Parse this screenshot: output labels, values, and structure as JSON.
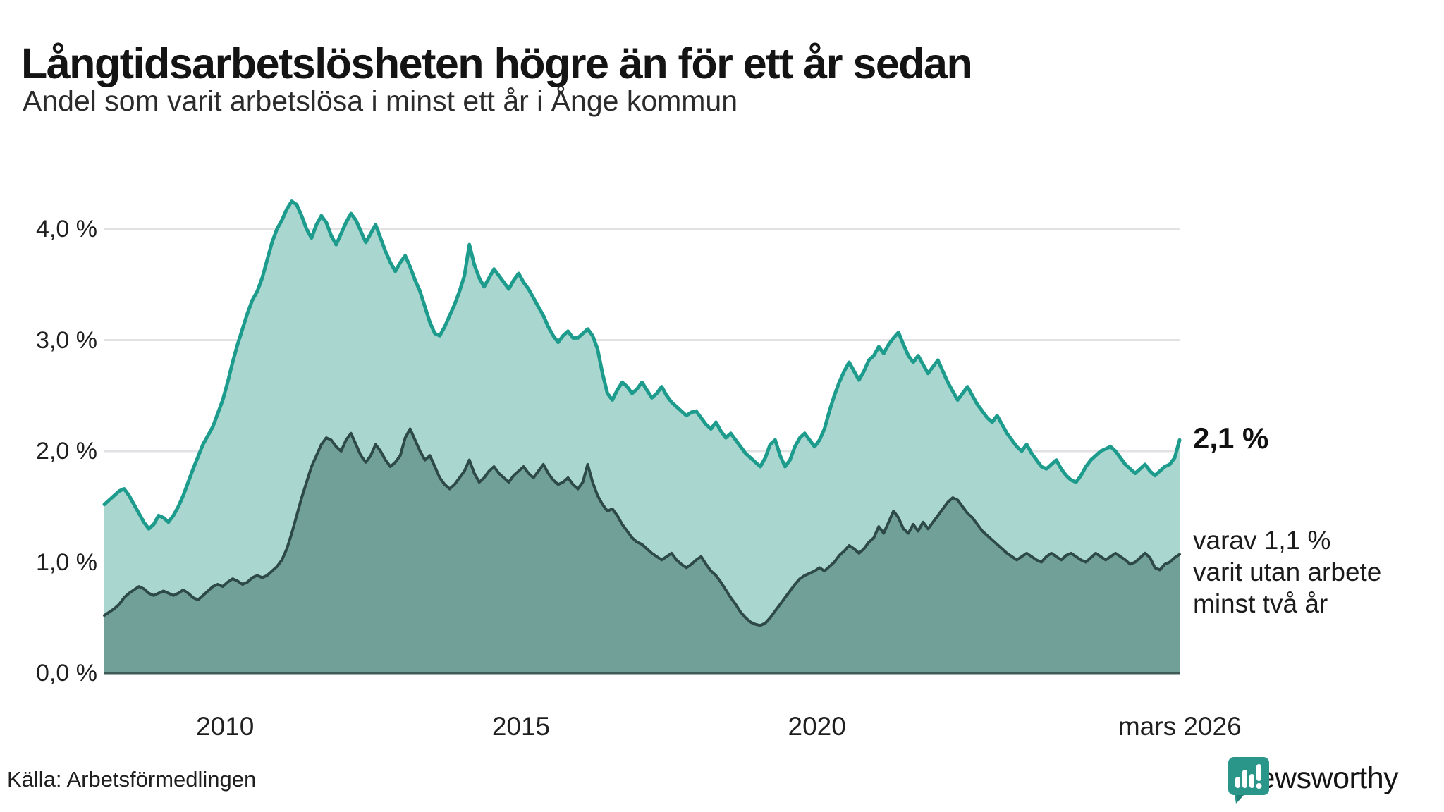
{
  "header": {
    "title": "Långtidsarbetslösheten högre än för ett år sedan",
    "subtitle": "Andel som varit arbetslösa i minst ett år i Ånge kommun"
  },
  "chart_data": {
    "type": "area",
    "unit": "%",
    "xlim": [
      2008.0,
      2026.1667
    ],
    "ylim": [
      0,
      4.3
    ],
    "grid": true,
    "x_frequency": "monthly",
    "yticks": [
      {
        "value": 0,
        "label": "0,0 %"
      },
      {
        "value": 1,
        "label": "1,0 %"
      },
      {
        "value": 2,
        "label": "2,0 %"
      },
      {
        "value": 3,
        "label": "3,0 %"
      },
      {
        "value": 4,
        "label": "4,0 %"
      }
    ],
    "xticks": [
      {
        "value": 2010.04,
        "label": "2010"
      },
      {
        "value": 2015.04,
        "label": "2015"
      },
      {
        "value": 2020.04,
        "label": "2020"
      },
      {
        "value": 2026.17,
        "label": "mars 2026"
      }
    ],
    "series": [
      {
        "name": "Andel arbetslösa minst ett år",
        "line_color": "#1d9c8d",
        "fill_color": "#a9d6cf",
        "line_width": 5,
        "start": "2008-01",
        "end": "2026-03",
        "values": [
          1.52,
          1.56,
          1.6,
          1.64,
          1.66,
          1.6,
          1.52,
          1.44,
          1.36,
          1.3,
          1.34,
          1.42,
          1.4,
          1.36,
          1.42,
          1.5,
          1.6,
          1.72,
          1.84,
          1.95,
          2.06,
          2.14,
          2.22,
          2.34,
          2.46,
          2.62,
          2.8,
          2.96,
          3.1,
          3.24,
          3.36,
          3.44,
          3.56,
          3.72,
          3.88,
          4.0,
          4.08,
          4.18,
          4.25,
          4.22,
          4.12,
          4.0,
          3.92,
          4.04,
          4.12,
          4.06,
          3.94,
          3.86,
          3.96,
          4.06,
          4.14,
          4.08,
          3.98,
          3.88,
          3.96,
          4.04,
          3.92,
          3.8,
          3.7,
          3.62,
          3.7,
          3.76,
          3.66,
          3.54,
          3.44,
          3.3,
          3.16,
          3.06,
          3.04,
          3.12,
          3.22,
          3.32,
          3.44,
          3.58,
          3.86,
          3.68,
          3.56,
          3.48,
          3.56,
          3.64,
          3.58,
          3.52,
          3.46,
          3.54,
          3.6,
          3.52,
          3.46,
          3.38,
          3.3,
          3.22,
          3.12,
          3.04,
          2.98,
          3.04,
          3.08,
          3.02,
          3.02,
          3.06,
          3.1,
          3.04,
          2.92,
          2.7,
          2.52,
          2.46,
          2.55,
          2.62,
          2.58,
          2.52,
          2.56,
          2.62,
          2.55,
          2.48,
          2.52,
          2.58,
          2.5,
          2.44,
          2.4,
          2.36,
          2.32,
          2.35,
          2.36,
          2.3,
          2.24,
          2.2,
          2.26,
          2.18,
          2.12,
          2.16,
          2.1,
          2.04,
          1.98,
          1.94,
          1.9,
          1.86,
          1.94,
          2.06,
          2.1,
          1.96,
          1.86,
          1.92,
          2.04,
          2.12,
          2.16,
          2.1,
          2.04,
          2.1,
          2.2,
          2.36,
          2.5,
          2.62,
          2.72,
          2.8,
          2.72,
          2.64,
          2.72,
          2.82,
          2.86,
          2.94,
          2.88,
          2.96,
          3.02,
          3.07,
          2.96,
          2.86,
          2.8,
          2.86,
          2.78,
          2.7,
          2.76,
          2.82,
          2.72,
          2.62,
          2.54,
          2.46,
          2.52,
          2.58,
          2.5,
          2.42,
          2.36,
          2.3,
          2.26,
          2.32,
          2.24,
          2.16,
          2.1,
          2.04,
          2.0,
          2.06,
          1.98,
          1.92,
          1.86,
          1.84,
          1.88,
          1.92,
          1.84,
          1.78,
          1.74,
          1.72,
          1.78,
          1.86,
          1.92,
          1.96,
          2.0,
          2.02,
          2.04,
          2.0,
          1.94,
          1.88,
          1.84,
          1.8,
          1.84,
          1.88,
          1.82,
          1.78,
          1.82,
          1.86,
          1.88,
          1.94,
          2.1
        ]
      },
      {
        "name": "Andel arbetslösa minst två år",
        "line_color": "#2e4a46",
        "fill_color": "#71a099",
        "line_width": 4,
        "start": "2008-01",
        "end": "2026-03",
        "values": [
          0.52,
          0.55,
          0.58,
          0.62,
          0.68,
          0.72,
          0.75,
          0.78,
          0.76,
          0.72,
          0.7,
          0.72,
          0.74,
          0.72,
          0.7,
          0.72,
          0.75,
          0.72,
          0.68,
          0.66,
          0.7,
          0.74,
          0.78,
          0.8,
          0.78,
          0.82,
          0.85,
          0.83,
          0.8,
          0.82,
          0.86,
          0.88,
          0.86,
          0.88,
          0.92,
          0.96,
          1.02,
          1.12,
          1.26,
          1.42,
          1.58,
          1.72,
          1.86,
          1.96,
          2.06,
          2.12,
          2.1,
          2.04,
          2.0,
          2.1,
          2.16,
          2.06,
          1.96,
          1.9,
          1.96,
          2.06,
          2.0,
          1.92,
          1.86,
          1.9,
          1.96,
          2.12,
          2.2,
          2.1,
          2.0,
          1.92,
          1.96,
          1.86,
          1.76,
          1.7,
          1.66,
          1.7,
          1.76,
          1.82,
          1.92,
          1.8,
          1.72,
          1.76,
          1.82,
          1.86,
          1.8,
          1.76,
          1.72,
          1.78,
          1.82,
          1.86,
          1.8,
          1.76,
          1.82,
          1.88,
          1.8,
          1.74,
          1.7,
          1.72,
          1.76,
          1.7,
          1.66,
          1.72,
          1.88,
          1.72,
          1.6,
          1.52,
          1.46,
          1.48,
          1.42,
          1.34,
          1.28,
          1.22,
          1.18,
          1.16,
          1.12,
          1.08,
          1.05,
          1.02,
          1.05,
          1.08,
          1.02,
          0.98,
          0.95,
          0.98,
          1.02,
          1.05,
          0.98,
          0.92,
          0.88,
          0.82,
          0.75,
          0.68,
          0.62,
          0.55,
          0.5,
          0.46,
          0.44,
          0.43,
          0.45,
          0.5,
          0.56,
          0.62,
          0.68,
          0.74,
          0.8,
          0.85,
          0.88,
          0.9,
          0.92,
          0.95,
          0.92,
          0.96,
          1.0,
          1.06,
          1.1,
          1.15,
          1.12,
          1.08,
          1.12,
          1.18,
          1.22,
          1.32,
          1.26,
          1.36,
          1.46,
          1.4,
          1.3,
          1.26,
          1.34,
          1.28,
          1.36,
          1.3,
          1.36,
          1.42,
          1.48,
          1.54,
          1.58,
          1.56,
          1.5,
          1.44,
          1.4,
          1.34,
          1.28,
          1.24,
          1.2,
          1.16,
          1.12,
          1.08,
          1.05,
          1.02,
          1.05,
          1.08,
          1.05,
          1.02,
          1.0,
          1.05,
          1.08,
          1.05,
          1.02,
          1.06,
          1.08,
          1.05,
          1.02,
          1.0,
          1.04,
          1.08,
          1.05,
          1.02,
          1.05,
          1.08,
          1.05,
          1.02,
          0.98,
          1.0,
          1.04,
          1.08,
          1.04,
          0.95,
          0.93,
          0.98,
          1.0,
          1.04,
          1.07
        ]
      }
    ],
    "end_labels": {
      "primary": "2,1 %",
      "secondary_lines": [
        "varav 1,1 %",
        "varit utan arbete",
        "minst två år"
      ]
    },
    "grid_color": "#e2e2e5",
    "baseline_color": "#3e5a56",
    "background": "#ffffff"
  },
  "source": {
    "label": "Källa: Arbetsförmedlingen"
  },
  "logo": {
    "text": "Newsworthy",
    "color": "#1d9c8d",
    "icon_color": "#2a9589"
  }
}
